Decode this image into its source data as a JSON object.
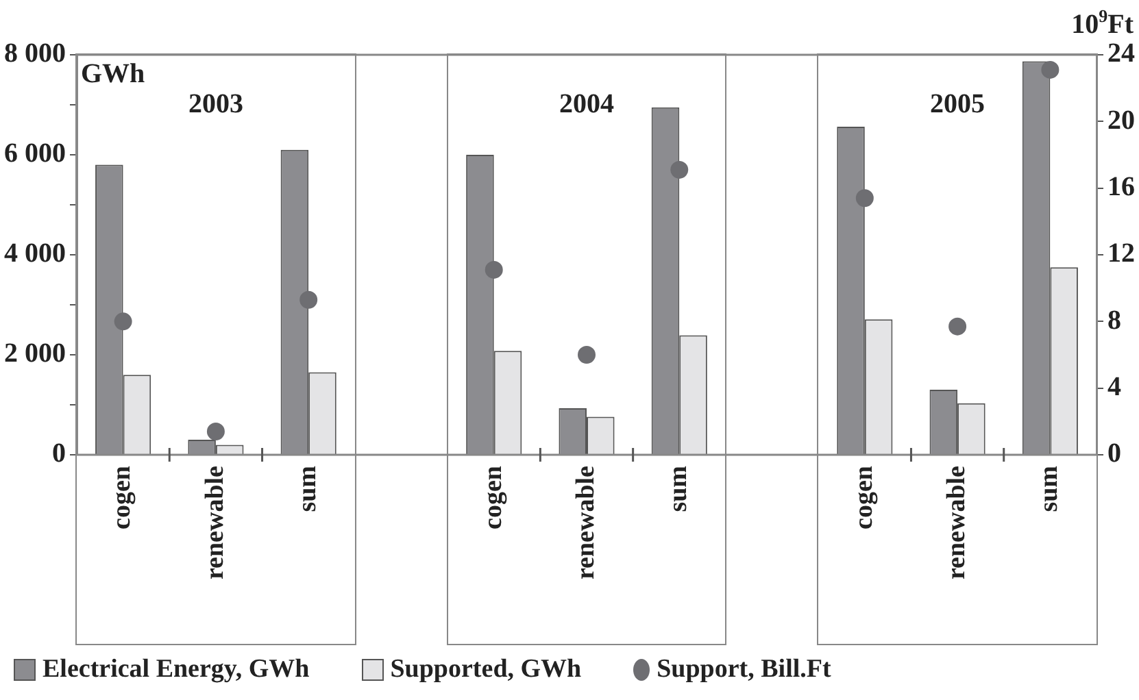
{
  "chart_data": {
    "type": "bar",
    "ylabel": "GWh",
    "y2label": "10$^{9}$Ft",
    "annotations": [
      "2003",
      "2004",
      "2005"
    ],
    "categories": [
      "cogen",
      "renewable",
      "sum",
      null,
      "cogen",
      "renewable",
      "sum",
      null,
      "cogen",
      "renewable",
      "sum"
    ],
    "series": [
      {
        "name": "Electrical Energy, GWh",
        "color": "#8c8c90",
        "values": [
          5800,
          300,
          6100,
          null,
          6000,
          930,
          6950,
          null,
          6560,
          1300,
          7870
        ]
      },
      {
        "name": "Supported, GWh",
        "color": "#e4e4e6",
        "values": [
          1600,
          200,
          1650,
          null,
          2080,
          760,
          2390,
          null,
          2710,
          1030,
          3750
        ]
      },
      {
        "name": "Support, Bill.Ft",
        "type": "scatter",
        "axis": "y2",
        "color": "#6e6e72",
        "values": [
          8.0,
          1.4,
          9.3,
          null,
          11.1,
          6.0,
          17.1,
          null,
          15.4,
          7.7,
          23.1
        ]
      }
    ],
    "ylim": [
      0,
      8000
    ],
    "yticks": [
      0,
      {
        "value": 1000,
        "label": null
      },
      {
        "value": 2000,
        "label": "2 000"
      },
      {
        "value": 3000,
        "label": null
      },
      {
        "value": 4000,
        "label": "4 000"
      },
      {
        "value": 5000,
        "label": null
      },
      {
        "value": 6000,
        "label": "6 000"
      },
      {
        "value": 7000,
        "label": null
      },
      {
        "value": 8000,
        "label": "8 000"
      }
    ],
    "y2lim": [
      0,
      24
    ],
    "y2ticks": [
      0,
      4,
      8,
      12,
      16,
      20,
      24
    ],
    "legend": "bottom",
    "marker": "circle",
    "grid": false
  }
}
